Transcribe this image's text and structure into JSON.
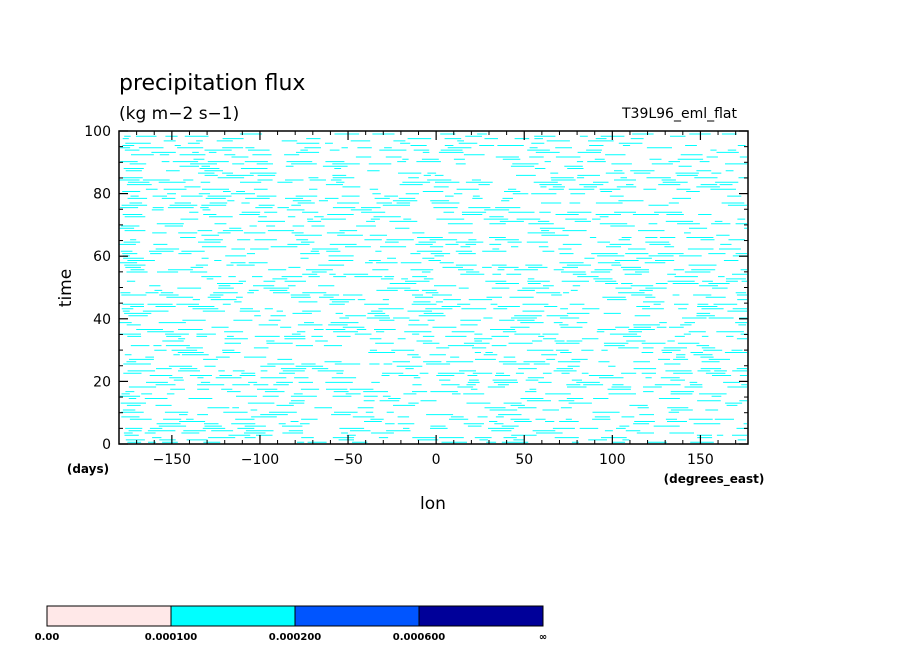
{
  "chart_data": {
    "type": "heatmap",
    "title": "precipitation flux",
    "units": "(kg m−2 s−1)",
    "run_label": "T39L96_eml_flat",
    "xlabel": "lon",
    "xunits": "(degrees_east)",
    "ylabel": "time",
    "yunits": "(days)",
    "xlim": [
      -180,
      177
    ],
    "ylim": [
      0,
      100
    ],
    "x_ticks": [
      -150,
      -100,
      -50,
      0,
      50,
      100,
      150
    ],
    "x_tick_labels": [
      "−150",
      "−100",
      "−50",
      "0",
      "50",
      "100",
      "150"
    ],
    "y_ticks": [
      0,
      20,
      40,
      60,
      80,
      100
    ],
    "y_tick_labels": [
      "0",
      "20",
      "40",
      "60",
      "80",
      "100"
    ],
    "colorbar": {
      "levels": [
        "0.00",
        "0.000100",
        "0.000200",
        "0.000600",
        "∞"
      ],
      "colors": [
        "#ffe8e8",
        "#00ffff",
        "#0055ff",
        "#000099"
      ]
    },
    "field_color": "#00ffff",
    "description": "Hovmoller of precipitation flux: many short thin cyan (0.0001-0.0002) streaks spread over all longitudes and times"
  }
}
